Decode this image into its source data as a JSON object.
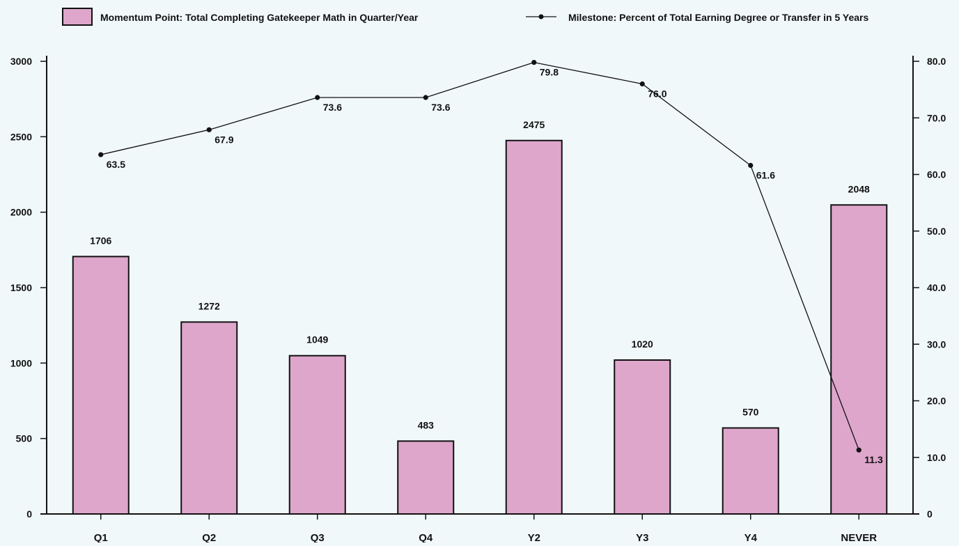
{
  "chart_data": {
    "type": "bar",
    "categories": [
      "Q1",
      "Q2",
      "Q3",
      "Q4",
      "Y2",
      "Y3",
      "Y4",
      "NEVER"
    ],
    "series": [
      {
        "name": "Momentum Point: Total Completing Gatekeeper Math in Quarter/Year",
        "type": "bar",
        "axis": "left",
        "color": "#dea6cb",
        "values": [
          1706,
          1272,
          1049,
          483,
          2475,
          1020,
          570,
          2048
        ],
        "labels": [
          "1706",
          "1272",
          "1049",
          "483",
          "2475",
          "1020",
          "570",
          "2048"
        ]
      },
      {
        "name": "Milestone: Percent of Total Earning Degree or Transfer in 5 Years",
        "type": "line",
        "axis": "right",
        "color": "#111111",
        "values": [
          63.5,
          67.9,
          73.6,
          73.6,
          79.8,
          76.0,
          61.6,
          11.3
        ],
        "labels": [
          "63.5",
          "67.9",
          "73.6",
          "73.6",
          "79.8",
          "76.0",
          "61.6",
          "11.3"
        ]
      }
    ],
    "left_axis": {
      "ylim": [
        0,
        3000
      ],
      "ticks": [
        0,
        500,
        1000,
        1500,
        2000,
        2500,
        3000
      ],
      "tick_labels": [
        "0",
        "500",
        "1000",
        "1500",
        "2000",
        "2500",
        "3000"
      ]
    },
    "right_axis": {
      "ylim": [
        0,
        80
      ],
      "ticks": [
        0,
        10,
        20,
        30,
        40,
        50,
        60,
        70,
        80
      ],
      "tick_labels": [
        "0",
        "10.0",
        "20.0",
        "30.0",
        "40.0",
        "50.0",
        "60.0",
        "70.0",
        "80.0"
      ]
    },
    "grid": false,
    "legend_position": "top"
  }
}
